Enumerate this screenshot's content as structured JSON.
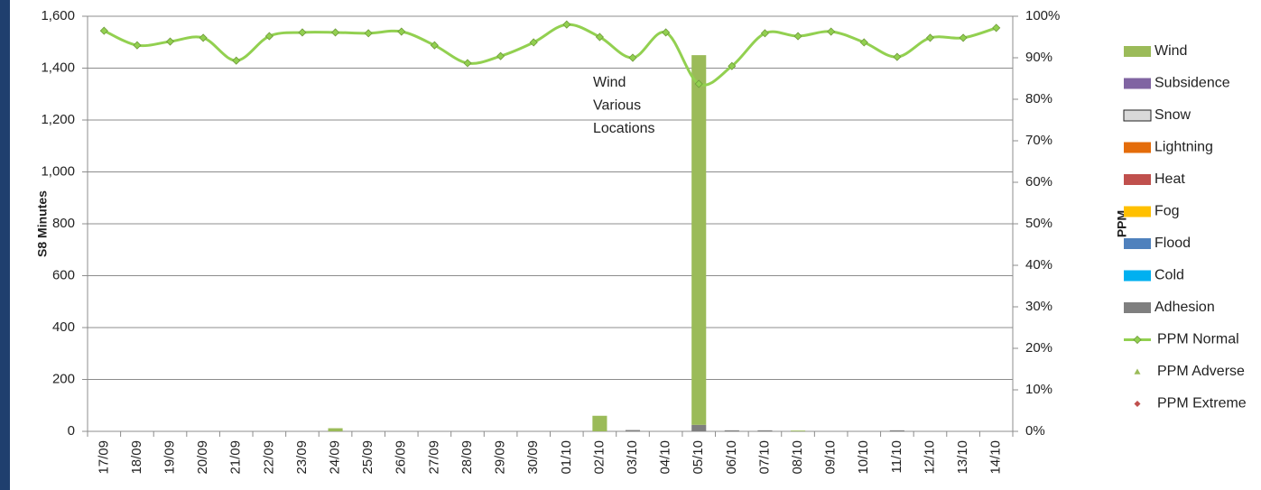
{
  "chart_data": {
    "type": "bar",
    "y_label": "S8 Minutes",
    "y2_label": "PPM",
    "annotation": [
      "Wind",
      "Various",
      "Locations"
    ],
    "categories": [
      "17/09",
      "18/09",
      "19/09",
      "20/09",
      "21/09",
      "22/09",
      "23/09",
      "24/09",
      "25/09",
      "26/09",
      "27/09",
      "28/09",
      "29/09",
      "30/09",
      "01/10",
      "02/10",
      "03/10",
      "04/10",
      "05/10",
      "06/10",
      "07/10",
      "08/10",
      "09/10",
      "10/10",
      "11/10",
      "12/10",
      "13/10",
      "14/10"
    ],
    "series": [
      {
        "name": "Wind",
        "color": "#9bbb59",
        "values": [
          0,
          0,
          0,
          0,
          0,
          0,
          0,
          12,
          0,
          0,
          0,
          0,
          0,
          0,
          0,
          60,
          0,
          0,
          1425,
          0,
          0,
          3,
          0,
          0,
          0,
          0,
          0,
          0
        ]
      },
      {
        "name": "Subsidence",
        "color": "#8064a2",
        "values": [
          0,
          0,
          0,
          0,
          0,
          0,
          0,
          0,
          0,
          0,
          0,
          0,
          0,
          0,
          0,
          0,
          0,
          0,
          0,
          0,
          0,
          0,
          0,
          0,
          0,
          0,
          0,
          0
        ]
      },
      {
        "name": "Snow",
        "color": "#d9d9d9",
        "values": [
          0,
          0,
          0,
          0,
          0,
          0,
          0,
          0,
          0,
          0,
          0,
          0,
          0,
          0,
          0,
          0,
          0,
          0,
          0,
          0,
          0,
          0,
          0,
          0,
          0,
          0,
          0,
          0
        ]
      },
      {
        "name": "Lightning",
        "color": "#e46c0a",
        "values": [
          0,
          0,
          0,
          0,
          0,
          0,
          0,
          0,
          0,
          0,
          0,
          0,
          0,
          0,
          0,
          0,
          0,
          0,
          0,
          0,
          0,
          0,
          0,
          0,
          0,
          0,
          0,
          0
        ]
      },
      {
        "name": "Heat",
        "color": "#c0504d",
        "values": [
          0,
          0,
          0,
          0,
          0,
          0,
          0,
          0,
          0,
          0,
          0,
          0,
          0,
          0,
          0,
          0,
          0,
          0,
          0,
          0,
          0,
          0,
          0,
          0,
          0,
          0,
          0,
          0
        ]
      },
      {
        "name": "Fog",
        "color": "#ffc000",
        "values": [
          0,
          0,
          0,
          0,
          0,
          0,
          0,
          0,
          0,
          0,
          0,
          0,
          0,
          0,
          0,
          0,
          0,
          0,
          0,
          0,
          0,
          0,
          0,
          0,
          0,
          0,
          0,
          0
        ]
      },
      {
        "name": "Flood",
        "color": "#4f81bd",
        "values": [
          0,
          0,
          0,
          0,
          0,
          0,
          0,
          0,
          0,
          0,
          0,
          0,
          0,
          0,
          0,
          0,
          0,
          0,
          0,
          0,
          0,
          0,
          0,
          0,
          0,
          0,
          0,
          0
        ]
      },
      {
        "name": "Cold",
        "color": "#00b0f0",
        "values": [
          0,
          0,
          0,
          0,
          0,
          0,
          0,
          0,
          0,
          0,
          0,
          0,
          0,
          0,
          0,
          0,
          0,
          0,
          0,
          0,
          0,
          0,
          0,
          0,
          0,
          0,
          0,
          0
        ]
      },
      {
        "name": "Adhesion",
        "color": "#7f7f7f",
        "values": [
          0,
          0,
          0,
          0,
          0,
          0,
          0,
          0,
          0,
          0,
          0,
          0,
          0,
          0,
          0,
          0,
          5,
          0,
          25,
          4,
          4,
          0,
          0,
          0,
          4,
          0,
          0,
          0
        ]
      },
      {
        "name": "PPM Normal",
        "color": "#92d050",
        "axis": "y2",
        "marker": "diamond",
        "values": [
          96.5,
          93.0,
          93.9,
          94.8,
          89.3,
          95.2,
          96.1,
          96.1,
          95.9,
          96.3,
          93.0,
          88.7,
          90.4,
          93.7,
          98.0,
          95.0,
          90.0,
          96.1,
          83.7,
          88.0,
          95.9,
          95.2,
          96.3,
          93.7,
          90.2,
          94.8,
          94.8,
          97.2
        ]
      },
      {
        "name": "PPM Adverse",
        "color": "#9bbb59",
        "axis": "y2",
        "marker": "triangle",
        "values": [
          null,
          null,
          null,
          null,
          null,
          null,
          null,
          null,
          null,
          null,
          null,
          null,
          null,
          null,
          null,
          null,
          null,
          null,
          null,
          null,
          null,
          null,
          null,
          null,
          null,
          null,
          null,
          null
        ]
      },
      {
        "name": "PPM Extreme",
        "color": "#c0504d",
        "axis": "y2",
        "marker": "diamond",
        "values": [
          null,
          null,
          null,
          null,
          null,
          null,
          null,
          null,
          null,
          null,
          null,
          null,
          null,
          null,
          null,
          null,
          null,
          null,
          null,
          null,
          null,
          null,
          null,
          null,
          null,
          null,
          null,
          null
        ]
      }
    ],
    "ylim": [
      0,
      1600
    ],
    "yticks": [
      {
        "value": 0,
        "label": "0"
      },
      {
        "value": 200,
        "label": "200"
      },
      {
        "value": 400,
        "label": "400"
      },
      {
        "value": 600,
        "label": "600"
      },
      {
        "value": 800,
        "label": "800"
      },
      {
        "value": 1000,
        "label": "1,000"
      },
      {
        "value": 1200,
        "label": "1,200"
      },
      {
        "value": 1400,
        "label": "1,400"
      },
      {
        "value": 1600,
        "label": "1,600"
      }
    ],
    "y2lim": [
      0,
      100
    ],
    "y2ticks": [
      {
        "value": 0,
        "label": "0%"
      },
      {
        "value": 10,
        "label": "10%"
      },
      {
        "value": 20,
        "label": "20%"
      },
      {
        "value": 30,
        "label": "30%"
      },
      {
        "value": 40,
        "label": "40%"
      },
      {
        "value": 50,
        "label": "50%"
      },
      {
        "value": 60,
        "label": "60%"
      },
      {
        "value": 70,
        "label": "70%"
      },
      {
        "value": 80,
        "label": "80%"
      },
      {
        "value": 90,
        "label": "90%"
      },
      {
        "value": 100,
        "label": "100%"
      }
    ],
    "grid": true,
    "legend": "right"
  }
}
